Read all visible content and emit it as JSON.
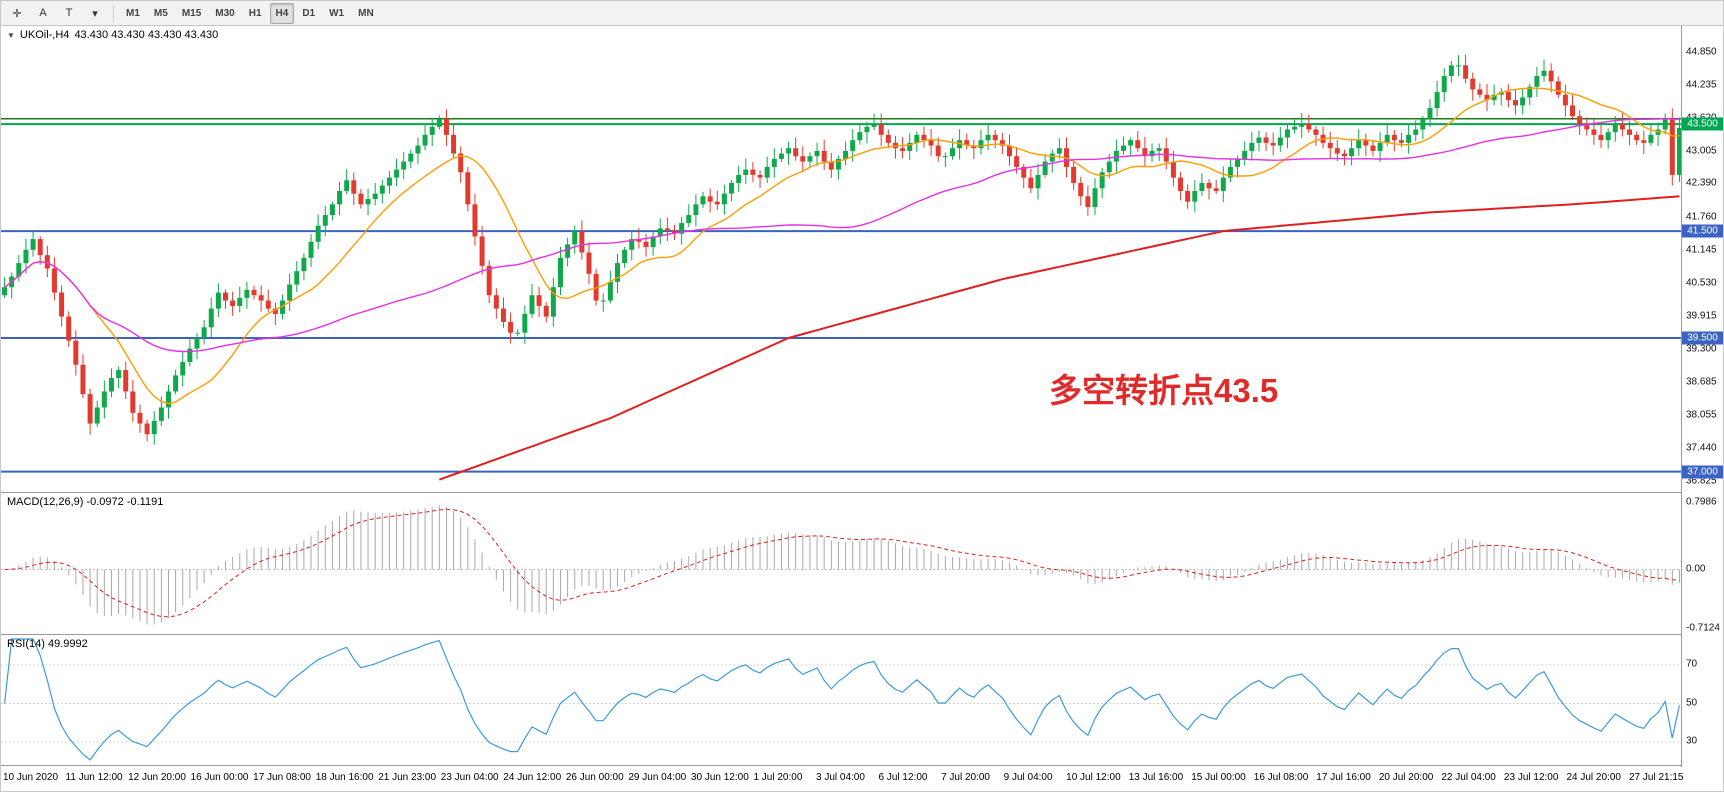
{
  "toolbar": {
    "tool_buttons": [
      {
        "name": "crosshair-tool-button",
        "glyph": "✛"
      },
      {
        "name": "text-tool-button",
        "glyph": "A"
      },
      {
        "name": "trendline-tool-button",
        "glyph": "T"
      },
      {
        "name": "draw-tools-dropdown-button",
        "glyph": "▾"
      }
    ],
    "timeframes": [
      "M1",
      "M5",
      "M15",
      "M30",
      "H1",
      "H4",
      "D1",
      "W1",
      "MN"
    ],
    "active_timeframe": "H4"
  },
  "main": {
    "title_symbol": "UKOil-,H4",
    "title_ohlc": "43.430 43.430 43.430 43.430",
    "annotation": "多空转折点43.5",
    "axis_ticks": [
      "44.850",
      "44.235",
      "43.620",
      "43.005",
      "42.390",
      "41.760",
      "41.145",
      "40.530",
      "39.915",
      "39.300",
      "38.685",
      "38.055",
      "37.440",
      "36.825"
    ]
  },
  "macd": {
    "title": "MACD(12,26,9) -0.0972 -0.1191",
    "axis_ticks": [
      "0.7986",
      "0.00",
      "-0.7124"
    ]
  },
  "rsi": {
    "title": "RSI(14) 49.9992",
    "axis_ticks": [
      "70",
      "50",
      "30"
    ]
  },
  "time_axis": [
    "10 Jun 2020",
    "11 Jun 12:00",
    "12 Jun 20:00",
    "16 Jun 00:00",
    "17 Jun 08:00",
    "18 Jun 16:00",
    "21 Jun 23:00",
    "23 Jun 04:00",
    "24 Jun 12:00",
    "26 Jun 00:00",
    "29 Jun 04:00",
    "30 Jun 12:00",
    "1 Jul 20:00",
    "3 Jul 04:00",
    "6 Jul 12:00",
    "7 Jul 20:00",
    "9 Jul 04:00",
    "10 Jul 12:00",
    "13 Jul 16:00",
    "15 Jul 00:00",
    "16 Jul 08:00",
    "17 Jul 16:00",
    "20 Jul 20:00",
    "22 Jul 04:00",
    "23 Jul 12:00",
    "24 Jul 20:00",
    "27 Jul 21:15"
  ],
  "chart_data": {
    "type": "candlestick+indicators",
    "symbol": "UKOil-",
    "timeframe": "H4",
    "ylim": [
      36.825,
      44.85
    ],
    "closes": [
      40.45,
      40.65,
      40.9,
      41.15,
      41.35,
      41.05,
      40.8,
      40.35,
      39.9,
      39.45,
      39.0,
      38.45,
      37.9,
      38.2,
      38.5,
      38.75,
      38.9,
      38.5,
      38.1,
      37.9,
      37.7,
      37.95,
      38.2,
      38.5,
      38.8,
      39.05,
      39.3,
      39.5,
      39.7,
      40.05,
      40.35,
      40.2,
      40.1,
      40.25,
      40.4,
      40.3,
      40.2,
      40.05,
      39.95,
      40.2,
      40.5,
      40.75,
      41.0,
      41.3,
      41.6,
      41.8,
      42.0,
      42.25,
      42.45,
      42.2,
      42.0,
      42.1,
      42.2,
      42.35,
      42.5,
      42.65,
      42.8,
      42.95,
      43.1,
      43.3,
      43.45,
      43.6,
      43.3,
      42.95,
      42.6,
      42.0,
      41.4,
      40.85,
      40.3,
      40.05,
      39.8,
      39.6,
      39.6,
      39.95,
      40.3,
      40.1,
      39.9,
      40.45,
      41.0,
      41.25,
      41.5,
      41.1,
      40.7,
      40.2,
      40.2,
      40.55,
      40.9,
      41.15,
      41.35,
      41.3,
      41.2,
      41.4,
      41.55,
      41.5,
      41.45,
      41.65,
      41.8,
      42.0,
      42.15,
      42.05,
      42.0,
      42.2,
      42.4,
      42.55,
      42.65,
      42.55,
      42.5,
      42.7,
      42.85,
      42.95,
      43.05,
      42.9,
      42.8,
      42.9,
      43.0,
      42.8,
      42.65,
      42.85,
      43.0,
      43.2,
      43.35,
      43.45,
      43.5,
      43.3,
      43.15,
      43.05,
      43.0,
      43.15,
      43.3,
      43.2,
      43.1,
      42.9,
      42.9,
      43.05,
      43.2,
      43.1,
      43.05,
      43.2,
      43.3,
      43.2,
      43.1,
      42.9,
      42.7,
      42.5,
      42.3,
      42.55,
      42.8,
      42.95,
      43.05,
      42.7,
      42.4,
      42.15,
      41.95,
      42.3,
      42.6,
      42.8,
      43.0,
      43.1,
      43.2,
      43.05,
      42.9,
      43.0,
      43.05,
      42.8,
      42.5,
      42.25,
      42.05,
      42.25,
      42.4,
      42.3,
      42.25,
      42.5,
      42.7,
      42.85,
      43.0,
      43.15,
      43.25,
      43.15,
      43.1,
      43.25,
      43.4,
      43.45,
      43.5,
      43.4,
      43.3,
      43.15,
      43.05,
      42.95,
      42.9,
      43.05,
      43.2,
      43.1,
      43.0,
      43.15,
      43.3,
      43.2,
      43.15,
      43.3,
      43.4,
      43.6,
      43.8,
      44.1,
      44.4,
      44.6,
      44.6,
      44.35,
      44.15,
      44.05,
      43.95,
      44.05,
      44.1,
      43.95,
      43.85,
      44.0,
      44.2,
      44.4,
      44.5,
      44.3,
      44.05,
      43.85,
      43.65,
      43.5,
      43.4,
      43.3,
      43.2,
      43.35,
      43.5,
      43.4,
      43.3,
      43.2,
      43.15,
      43.3,
      43.4,
      43.6,
      42.55,
      43.43
    ],
    "hlines": [
      {
        "price": 43.6,
        "color": "#1e7a1e",
        "width": 1.5,
        "label": null,
        "badge": null
      },
      {
        "price": 43.5,
        "color": "#00a651",
        "width": 2,
        "label": "43.500",
        "badge": "#00a651"
      },
      {
        "price": 41.5,
        "color": "#3a62c4",
        "width": 2,
        "label": "41.500",
        "badge": "#3a62c4"
      },
      {
        "price": 39.5,
        "color": "#3a62c4",
        "width": 2,
        "label": "39.500",
        "badge": "#3a62c4"
      },
      {
        "price": 37.0,
        "color": "#3a62c4",
        "width": 2,
        "label": "37.000",
        "badge": "#3a62c4"
      }
    ],
    "red_ma_anchors": [
      [
        61,
        36.85
      ],
      [
        85,
        38.0
      ],
      [
        110,
        39.5
      ],
      [
        140,
        40.6
      ],
      [
        171,
        41.5
      ],
      [
        200,
        41.85
      ],
      [
        220,
        42.0
      ],
      [
        235,
        42.15
      ]
    ],
    "ma_fast_period": 13,
    "ma_mid_period": 55,
    "macd_params": [
      12,
      26,
      9
    ],
    "rsi_period": 14,
    "rsi_levels": [
      70,
      50,
      30
    ],
    "colors": {
      "up": "#0fa84a",
      "down": "#e23a2e",
      "ma_fast": "#ff9d00",
      "ma_mid": "#e630e6",
      "ma_slow": "#e02020",
      "macd_hist": "#a8a8a8",
      "macd_signal": "#e02020",
      "rsi": "#3f9bd8"
    }
  }
}
